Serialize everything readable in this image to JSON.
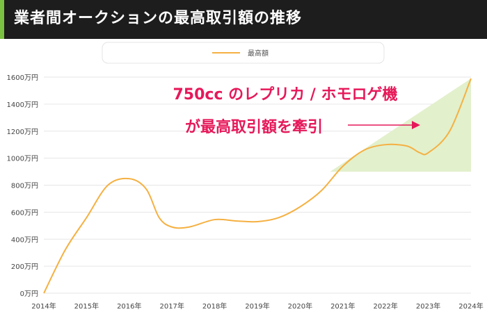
{
  "header": {
    "title": "業者間オークションの最高取引額の推移"
  },
  "annotation": {
    "line1": "750cc のレプリカ / ホモロゲ機",
    "line2": "が最高取引額を牽引"
  },
  "colors": {
    "header_bg": "#1d1d1d",
    "accent": "#7bc142",
    "line": "#f5b041",
    "annotation_text": "#e6185a",
    "highlight_fill": "#e2f0cc"
  },
  "chart_data": {
    "type": "line",
    "title": "",
    "xlabel": "",
    "ylabel": "",
    "legend_position": "top-center",
    "grid": true,
    "x": [
      2014,
      2014.5,
      2015,
      2015.5,
      2016,
      2016.4,
      2016.7,
      2017,
      2017.4,
      2018,
      2018.5,
      2019,
      2019.5,
      2020,
      2020.5,
      2021,
      2021.5,
      2022,
      2022.5,
      2022.8,
      2023,
      2023.5,
      2024
    ],
    "x_tick_values": [
      2014,
      2015,
      2016,
      2017,
      2018,
      2019,
      2020,
      2021,
      2022,
      2023,
      2024
    ],
    "x_tick_labels": [
      "2014年",
      "2015年",
      "2016年",
      "2017年",
      "2018年",
      "2019年",
      "2020年",
      "2021年",
      "2022年",
      "2023年",
      "2024年"
    ],
    "y_tick_values": [
      0,
      200,
      400,
      600,
      800,
      1000,
      1200,
      1400,
      1600
    ],
    "y_tick_labels": [
      "0万円",
      "200万円",
      "400万円",
      "600万円",
      "800万円",
      "1000万円",
      "1200万円",
      "1400万円",
      "1600万円"
    ],
    "ylim": [
      0,
      1600
    ],
    "xlim": [
      2014,
      2024
    ],
    "series": [
      {
        "name": "最高額",
        "values": [
          0,
          320,
          560,
          800,
          848,
          770,
          560,
          490,
          490,
          545,
          535,
          530,
          560,
          640,
          760,
          940,
          1060,
          1100,
          1090,
          1040,
          1040,
          1200,
          1590
        ]
      }
    ]
  }
}
